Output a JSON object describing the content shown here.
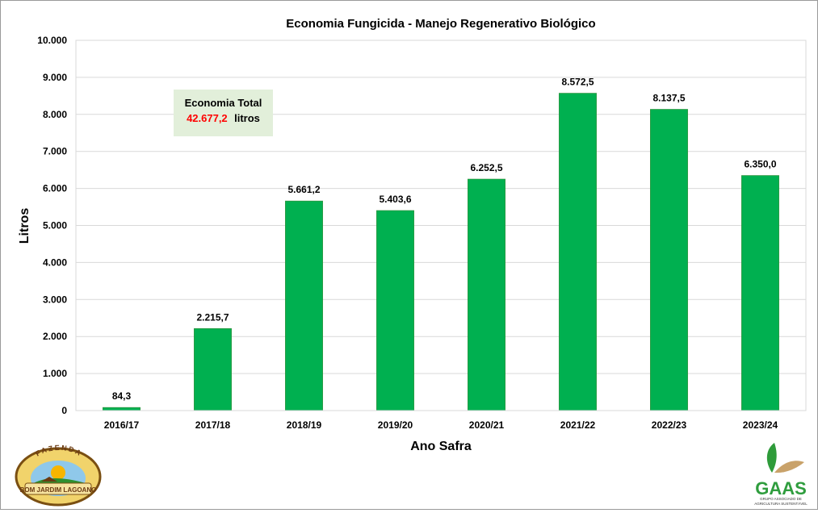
{
  "chart_data": {
    "type": "bar",
    "title": "Economia Fungicida - Manejo Regenerativo Biológico",
    "xlabel": "Ano Safra",
    "ylabel": "Litros",
    "categories": [
      "2016/17",
      "2017/18",
      "2018/19",
      "2019/20",
      "2020/21",
      "2021/22",
      "2022/23",
      "2023/24"
    ],
    "values": [
      84.3,
      2215.7,
      5661.2,
      5403.6,
      6252.5,
      8572.5,
      8137.5,
      6350.0
    ],
    "data_labels": [
      "84,3",
      "2.215,7",
      "5.661,2",
      "5.403,6",
      "6.252,5",
      "8.572,5",
      "8.137,5",
      "6.350,0"
    ],
    "ylim": [
      0,
      10000
    ],
    "yticks": [
      0,
      1000,
      2000,
      3000,
      4000,
      5000,
      6000,
      7000,
      8000,
      9000,
      10000
    ],
    "ytick_labels": [
      "0",
      "1.000",
      "2.000",
      "3.000",
      "4.000",
      "5.000",
      "6.000",
      "7.000",
      "8.000",
      "9.000",
      "10.000"
    ],
    "grid": true,
    "bar_color": "#00b050",
    "legend": "none",
    "annotation": {
      "title": "Economia Total",
      "value": "42.677,2",
      "unit": "litros",
      "value_color": "#ff0000",
      "background": "#e2efda"
    }
  },
  "logos": {
    "left": {
      "top_text": "FAZENDA",
      "bottom_text": "BOM JARDIM LAGOANO"
    },
    "right": {
      "name": "GAAS",
      "subtitle_line1": "GRUPO ASSOCIADO DE",
      "subtitle_line2": "AGRICULTURA SUSTENTÁVEL"
    }
  }
}
